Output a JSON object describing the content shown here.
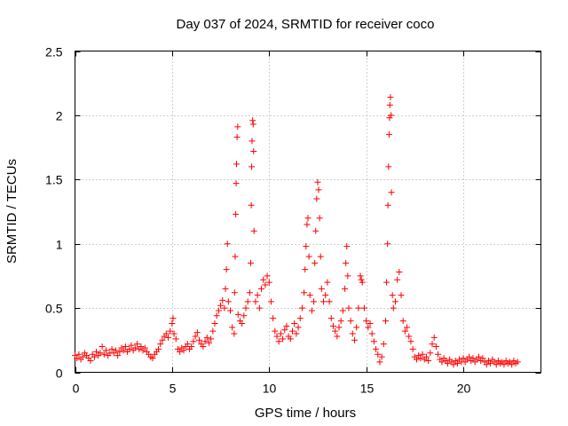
{
  "chart_data": {
    "type": "scatter",
    "title": "Day 037 of 2024, SRMTID for receiver coco",
    "xlabel": "GPS time / hours",
    "ylabel": "SRMTID / TECUs",
    "xlim": [
      0,
      24
    ],
    "ylim": [
      0,
      2.5
    ],
    "x_ticks": [
      0,
      5,
      10,
      15,
      20
    ],
    "x_tick_labels": [
      "0",
      "5",
      "10",
      "15",
      "20"
    ],
    "y_ticks": [
      0,
      0.5,
      1,
      1.5,
      2,
      2.5
    ],
    "y_tick_labels": [
      "0",
      "0.5",
      "1",
      "1.5",
      "2",
      "2.5"
    ],
    "grid": true,
    "marker": "+",
    "color": "#ff0000",
    "series": [
      {
        "name": "SRMTID",
        "points": [
          [
            0.0,
            0.13
          ],
          [
            0.1,
            0.11
          ],
          [
            0.2,
            0.14
          ],
          [
            0.3,
            0.1
          ],
          [
            0.4,
            0.12
          ],
          [
            0.5,
            0.15
          ],
          [
            0.6,
            0.13
          ],
          [
            0.7,
            0.11
          ],
          [
            0.8,
            0.09
          ],
          [
            0.9,
            0.14
          ],
          [
            1.0,
            0.12
          ],
          [
            1.1,
            0.16
          ],
          [
            1.2,
            0.13
          ],
          [
            1.3,
            0.15
          ],
          [
            1.4,
            0.2
          ],
          [
            1.5,
            0.14
          ],
          [
            1.6,
            0.17
          ],
          [
            1.7,
            0.13
          ],
          [
            1.8,
            0.15
          ],
          [
            1.9,
            0.18
          ],
          [
            2.0,
            0.15
          ],
          [
            2.1,
            0.17
          ],
          [
            2.2,
            0.13
          ],
          [
            2.3,
            0.16
          ],
          [
            2.4,
            0.19
          ],
          [
            2.5,
            0.17
          ],
          [
            2.6,
            0.2
          ],
          [
            2.7,
            0.16
          ],
          [
            2.8,
            0.18
          ],
          [
            2.9,
            0.21
          ],
          [
            3.0,
            0.17
          ],
          [
            3.1,
            0.19
          ],
          [
            3.2,
            0.22
          ],
          [
            3.3,
            0.18
          ],
          [
            3.4,
            0.2
          ],
          [
            3.5,
            0.17
          ],
          [
            3.6,
            0.19
          ],
          [
            3.7,
            0.16
          ],
          [
            3.8,
            0.14
          ],
          [
            3.9,
            0.12
          ],
          [
            4.0,
            0.11
          ],
          [
            4.1,
            0.14
          ],
          [
            4.2,
            0.16
          ],
          [
            4.3,
            0.18
          ],
          [
            4.4,
            0.22
          ],
          [
            4.5,
            0.25
          ],
          [
            4.6,
            0.28
          ],
          [
            4.7,
            0.3
          ],
          [
            4.8,
            0.27
          ],
          [
            4.9,
            0.32
          ],
          [
            5.0,
            0.38
          ],
          [
            5.05,
            0.42
          ],
          [
            5.1,
            0.3
          ],
          [
            5.2,
            0.26
          ],
          [
            5.3,
            0.18
          ],
          [
            5.4,
            0.16
          ],
          [
            5.5,
            0.19
          ],
          [
            5.6,
            0.17
          ],
          [
            5.7,
            0.2
          ],
          [
            5.8,
            0.22
          ],
          [
            5.9,
            0.18
          ],
          [
            6.0,
            0.2
          ],
          [
            6.1,
            0.24
          ],
          [
            6.2,
            0.28
          ],
          [
            6.3,
            0.31
          ],
          [
            6.4,
            0.25
          ],
          [
            6.5,
            0.22
          ],
          [
            6.6,
            0.2
          ],
          [
            6.7,
            0.24
          ],
          [
            6.8,
            0.27
          ],
          [
            6.9,
            0.23
          ],
          [
            7.0,
            0.26
          ],
          [
            7.1,
            0.32
          ],
          [
            7.2,
            0.38
          ],
          [
            7.3,
            0.44
          ],
          [
            7.4,
            0.48
          ],
          [
            7.5,
            0.52
          ],
          [
            7.6,
            0.56
          ],
          [
            7.7,
            0.5
          ],
          [
            7.75,
            0.65
          ],
          [
            7.8,
            0.8
          ],
          [
            7.85,
            1.0
          ],
          [
            7.9,
            0.55
          ],
          [
            8.0,
            0.48
          ],
          [
            8.1,
            0.35
          ],
          [
            8.2,
            0.3
          ],
          [
            8.22,
            0.62
          ],
          [
            8.25,
            0.9
          ],
          [
            8.28,
            1.23
          ],
          [
            8.3,
            1.47
          ],
          [
            8.32,
            1.62
          ],
          [
            8.35,
            1.83
          ],
          [
            8.38,
            1.91
          ],
          [
            8.4,
            0.45
          ],
          [
            8.5,
            0.4
          ],
          [
            8.6,
            0.38
          ],
          [
            8.7,
            0.44
          ],
          [
            8.8,
            0.5
          ],
          [
            8.9,
            0.55
          ],
          [
            9.0,
            0.62
          ],
          [
            9.05,
            0.85
          ],
          [
            9.08,
            1.3
          ],
          [
            9.1,
            1.6
          ],
          [
            9.12,
            1.8
          ],
          [
            9.15,
            1.96
          ],
          [
            9.18,
            1.93
          ],
          [
            9.2,
            1.72
          ],
          [
            9.22,
            1.1
          ],
          [
            9.3,
            0.55
          ],
          [
            9.4,
            0.6
          ],
          [
            9.5,
            0.5
          ],
          [
            9.6,
            0.65
          ],
          [
            9.7,
            0.72
          ],
          [
            9.8,
            0.68
          ],
          [
            9.9,
            0.75
          ],
          [
            10.0,
            0.7
          ],
          [
            10.1,
            0.55
          ],
          [
            10.2,
            0.42
          ],
          [
            10.3,
            0.32
          ],
          [
            10.4,
            0.28
          ],
          [
            10.5,
            0.24
          ],
          [
            10.6,
            0.3
          ],
          [
            10.7,
            0.26
          ],
          [
            10.8,
            0.33
          ],
          [
            10.9,
            0.36
          ],
          [
            11.0,
            0.28
          ],
          [
            11.1,
            0.26
          ],
          [
            11.2,
            0.32
          ],
          [
            11.3,
            0.38
          ],
          [
            11.4,
            0.3
          ],
          [
            11.5,
            0.35
          ],
          [
            11.6,
            0.42
          ],
          [
            11.7,
            0.5
          ],
          [
            11.8,
            0.62
          ],
          [
            11.85,
            0.8
          ],
          [
            11.9,
            0.98
          ],
          [
            11.95,
            1.15
          ],
          [
            12.0,
            1.2
          ],
          [
            12.05,
            0.9
          ],
          [
            12.1,
            0.6
          ],
          [
            12.2,
            0.48
          ],
          [
            12.3,
            0.55
          ],
          [
            12.35,
            0.85
          ],
          [
            12.4,
            1.1
          ],
          [
            12.45,
            1.35
          ],
          [
            12.5,
            1.48
          ],
          [
            12.55,
            1.42
          ],
          [
            12.6,
            1.2
          ],
          [
            12.65,
            0.9
          ],
          [
            12.7,
            0.65
          ],
          [
            12.8,
            0.55
          ],
          [
            12.9,
            0.6
          ],
          [
            13.0,
            0.7
          ],
          [
            13.1,
            0.55
          ],
          [
            13.2,
            0.42
          ],
          [
            13.3,
            0.36
          ],
          [
            13.4,
            0.32
          ],
          [
            13.5,
            0.28
          ],
          [
            13.6,
            0.35
          ],
          [
            13.7,
            0.4
          ],
          [
            13.8,
            0.48
          ],
          [
            13.9,
            0.65
          ],
          [
            13.95,
            0.85
          ],
          [
            14.0,
            0.98
          ],
          [
            14.05,
            0.75
          ],
          [
            14.1,
            0.5
          ],
          [
            14.2,
            0.4
          ],
          [
            14.3,
            0.3
          ],
          [
            14.4,
            0.25
          ],
          [
            14.5,
            0.35
          ],
          [
            14.6,
            0.5
          ],
          [
            14.7,
            0.75
          ],
          [
            14.75,
            0.72
          ],
          [
            14.8,
            0.7
          ],
          [
            14.9,
            0.5
          ],
          [
            15.0,
            0.4
          ],
          [
            15.1,
            0.35
          ],
          [
            15.2,
            0.38
          ],
          [
            15.3,
            0.3
          ],
          [
            15.4,
            0.24
          ],
          [
            15.5,
            0.18
          ],
          [
            15.6,
            0.14
          ],
          [
            15.7,
            0.08
          ],
          [
            15.8,
            0.12
          ],
          [
            15.9,
            0.22
          ],
          [
            16.0,
            0.4
          ],
          [
            16.05,
            0.7
          ],
          [
            16.1,
            1.0
          ],
          [
            16.12,
            1.3
          ],
          [
            16.15,
            1.6
          ],
          [
            16.18,
            1.85
          ],
          [
            16.2,
            1.98
          ],
          [
            16.22,
            2.08
          ],
          [
            16.25,
            2.14
          ],
          [
            16.28,
            2.0
          ],
          [
            16.3,
            1.4
          ],
          [
            16.35,
            0.6
          ],
          [
            16.4,
            0.5
          ],
          [
            16.5,
            0.55
          ],
          [
            16.6,
            0.72
          ],
          [
            16.7,
            0.78
          ],
          [
            16.8,
            0.6
          ],
          [
            16.9,
            0.4
          ],
          [
            17.0,
            0.32
          ],
          [
            17.1,
            0.35
          ],
          [
            17.2,
            0.28
          ],
          [
            17.3,
            0.24
          ],
          [
            17.4,
            0.18
          ],
          [
            17.5,
            0.12
          ],
          [
            17.6,
            0.1
          ],
          [
            17.7,
            0.13
          ],
          [
            17.8,
            0.11
          ],
          [
            17.9,
            0.14
          ],
          [
            18.0,
            0.1
          ],
          [
            18.1,
            0.12
          ],
          [
            18.2,
            0.09
          ],
          [
            18.3,
            0.15
          ],
          [
            18.4,
            0.22
          ],
          [
            18.5,
            0.27
          ],
          [
            18.6,
            0.2
          ],
          [
            18.7,
            0.14
          ],
          [
            18.8,
            0.1
          ],
          [
            18.9,
            0.08
          ],
          [
            19.0,
            0.11
          ],
          [
            19.1,
            0.09
          ],
          [
            19.2,
            0.07
          ],
          [
            19.3,
            0.1
          ],
          [
            19.4,
            0.08
          ],
          [
            19.5,
            0.06
          ],
          [
            19.6,
            0.09
          ],
          [
            19.7,
            0.07
          ],
          [
            19.8,
            0.1
          ],
          [
            19.9,
            0.08
          ],
          [
            20.0,
            0.11
          ],
          [
            20.1,
            0.08
          ],
          [
            20.2,
            0.1
          ],
          [
            20.3,
            0.12
          ],
          [
            20.4,
            0.09
          ],
          [
            20.5,
            0.11
          ],
          [
            20.6,
            0.08
          ],
          [
            20.7,
            0.1
          ],
          [
            20.8,
            0.12
          ],
          [
            20.9,
            0.09
          ],
          [
            21.0,
            0.11
          ],
          [
            21.1,
            0.08
          ],
          [
            21.2,
            0.06
          ],
          [
            21.3,
            0.09
          ],
          [
            21.4,
            0.07
          ],
          [
            21.5,
            0.1
          ],
          [
            21.6,
            0.08
          ],
          [
            21.7,
            0.06
          ],
          [
            21.8,
            0.09
          ],
          [
            21.9,
            0.07
          ],
          [
            22.0,
            0.08
          ],
          [
            22.1,
            0.06
          ],
          [
            22.2,
            0.09
          ],
          [
            22.3,
            0.07
          ],
          [
            22.4,
            0.08
          ],
          [
            22.5,
            0.06
          ],
          [
            22.6,
            0.09
          ],
          [
            22.7,
            0.07
          ],
          [
            22.8,
            0.08
          ]
        ]
      }
    ]
  }
}
